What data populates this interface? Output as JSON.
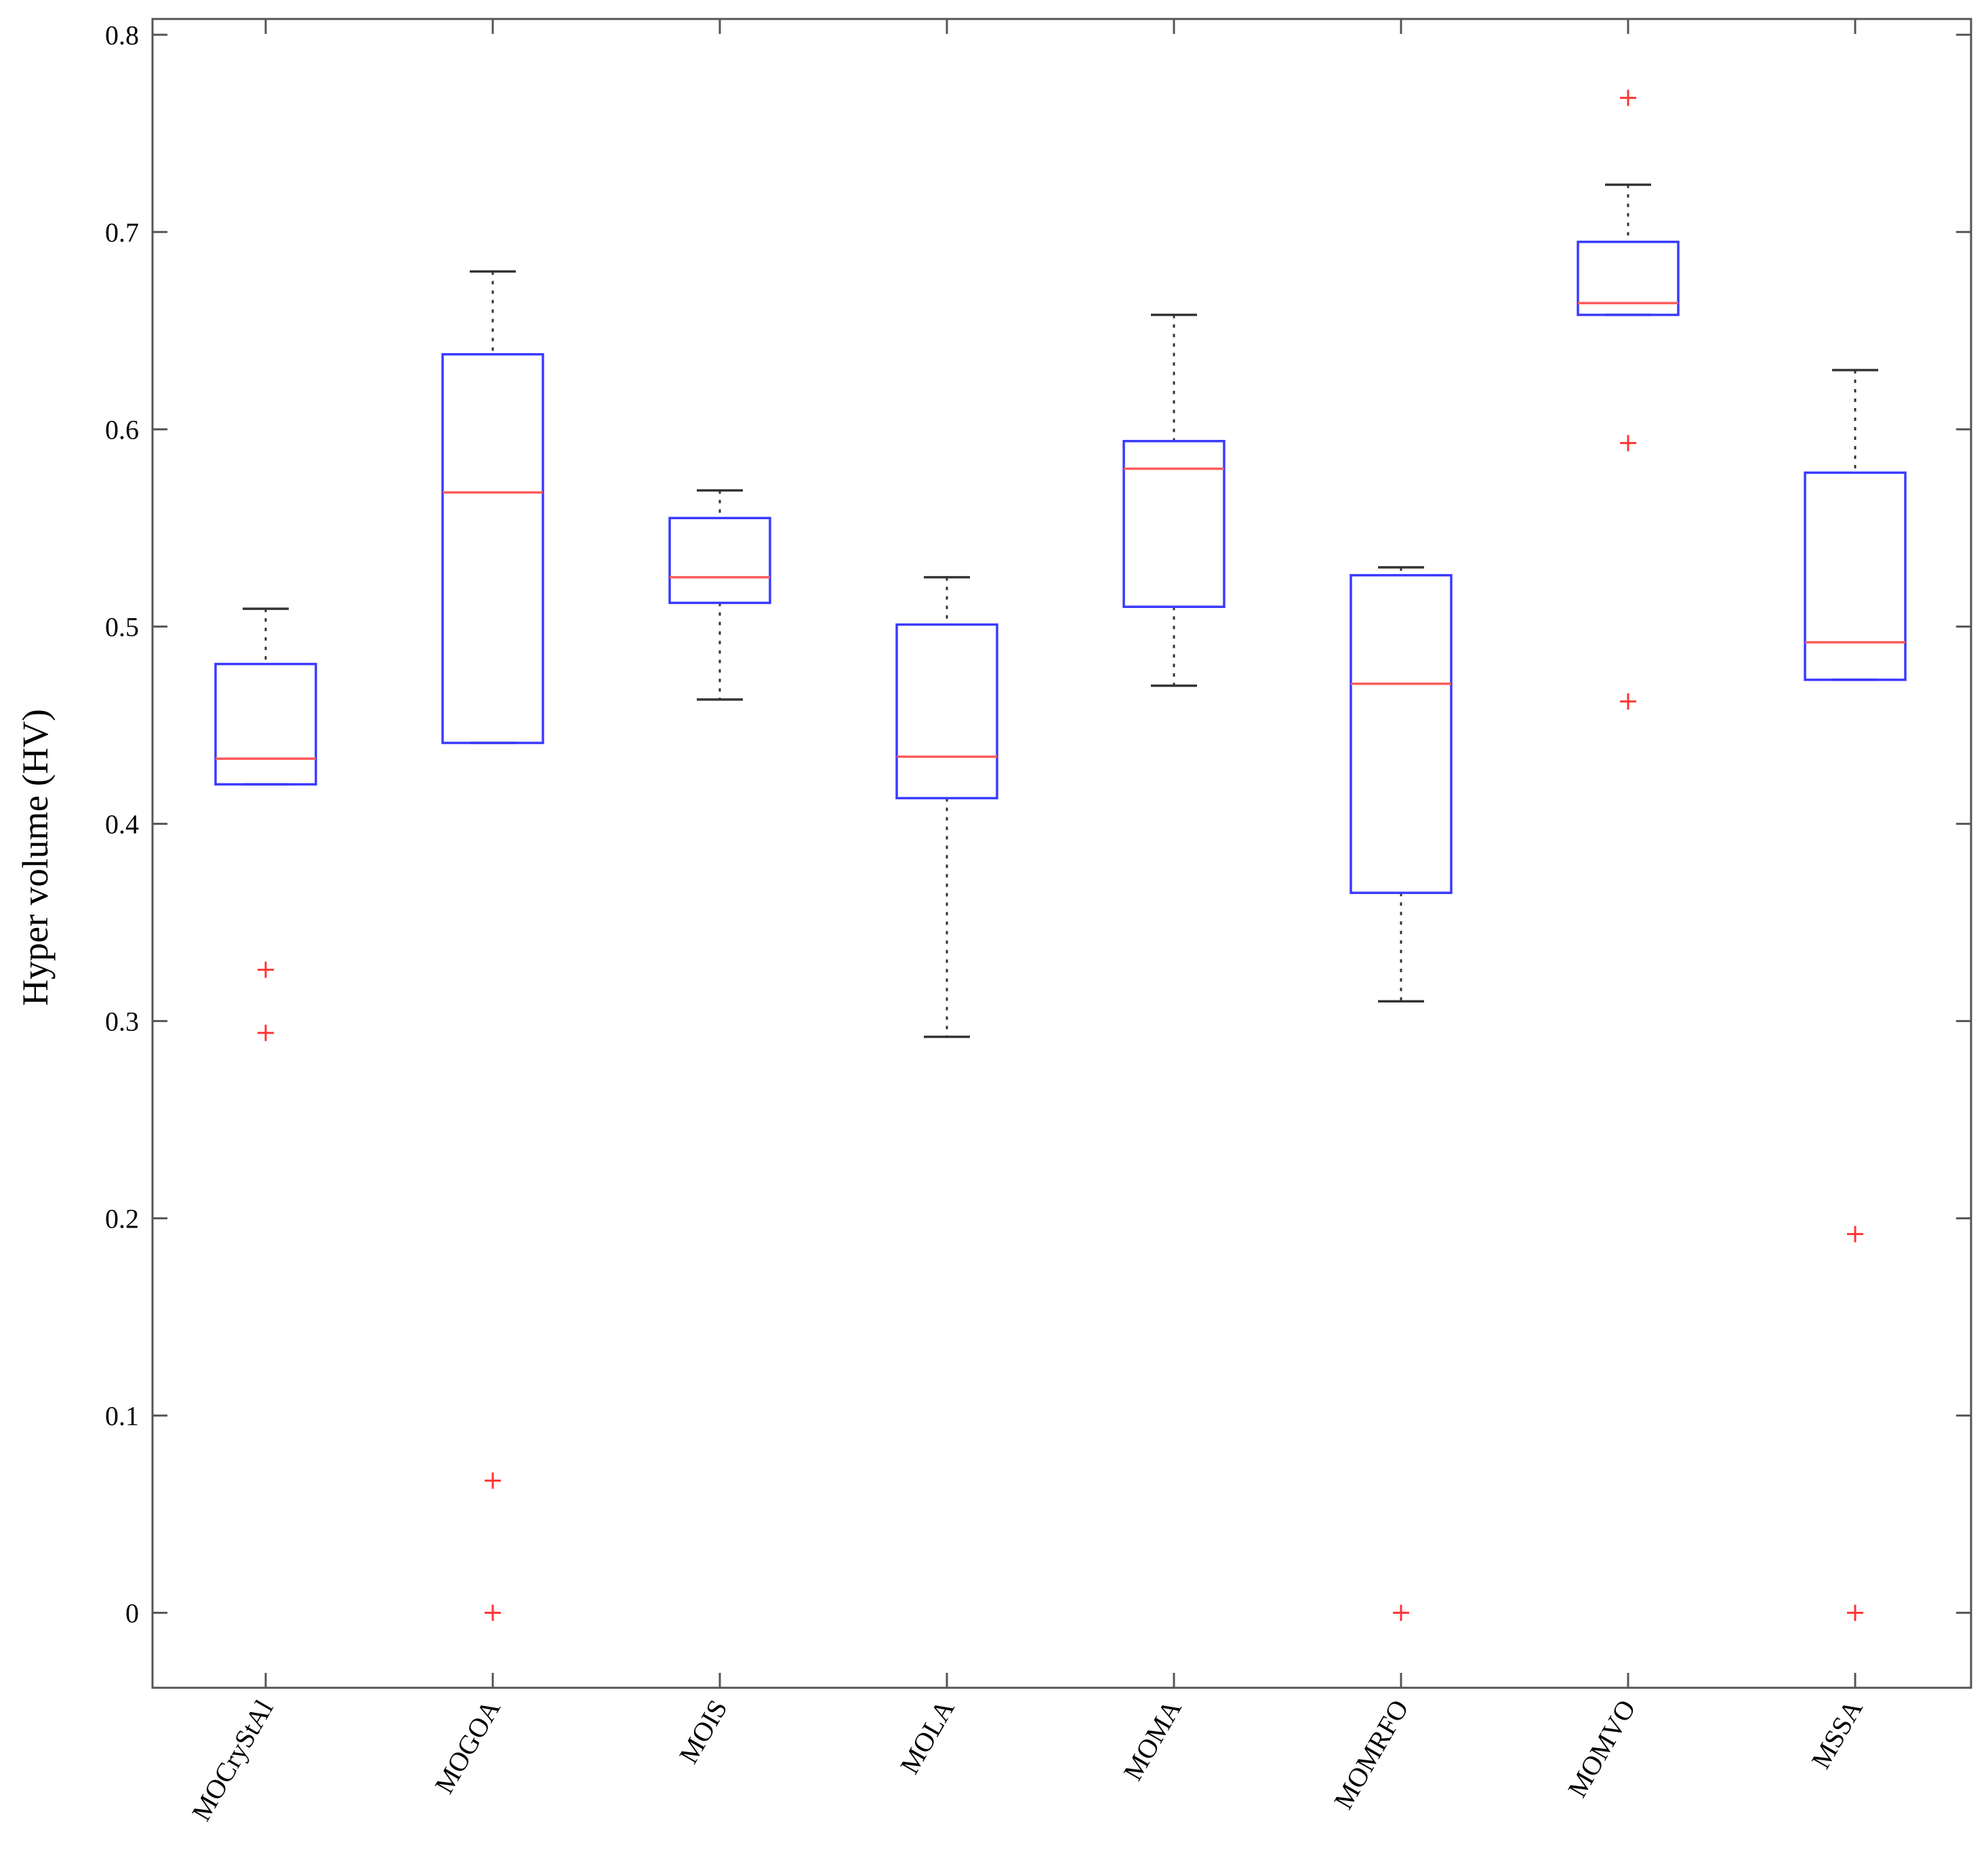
{
  "chart_data": {
    "type": "box",
    "title": "",
    "xlabel": "",
    "ylabel": "Hyper volume (HV)",
    "ylim": [
      -0.038,
      0.808
    ],
    "yticks": [
      0,
      0.1,
      0.2,
      0.3,
      0.4,
      0.5,
      0.6,
      0.7,
      0.8
    ],
    "ytick_labels": [
      "0",
      "0.1",
      "0.2",
      "0.3",
      "0.4",
      "0.5",
      "0.6",
      "0.7",
      "0.8"
    ],
    "grid": false,
    "colors": {
      "box": "#3a3aff",
      "median": "#ff5a5a",
      "whisker": "#333333",
      "outlier": "#ff3333",
      "axis": "#555555"
    },
    "categories": [
      "MOCryStAl",
      "MOGOA",
      "MOIS",
      "MOLA",
      "MOMA",
      "MOMRFO",
      "MOMVO",
      "MSSA"
    ],
    "boxes": [
      {
        "name": "MOCryStAl",
        "whisker_low": 0.42,
        "q1": 0.42,
        "median": 0.433,
        "q3": 0.481,
        "whisker_high": 0.509,
        "outliers": [
          0.326,
          0.294
        ]
      },
      {
        "name": "MOGOA",
        "whisker_low": 0.441,
        "q1": 0.441,
        "median": 0.568,
        "q3": 0.638,
        "whisker_high": 0.68,
        "outliers": [
          0.067,
          0.0
        ]
      },
      {
        "name": "MOIS",
        "whisker_low": 0.463,
        "q1": 0.512,
        "median": 0.525,
        "q3": 0.555,
        "whisker_high": 0.569,
        "outliers": []
      },
      {
        "name": "MOLA",
        "whisker_low": 0.292,
        "q1": 0.413,
        "median": 0.434,
        "q3": 0.501,
        "whisker_high": 0.525,
        "outliers": []
      },
      {
        "name": "MOMA",
        "whisker_low": 0.47,
        "q1": 0.51,
        "median": 0.58,
        "q3": 0.594,
        "whisker_high": 0.658,
        "outliers": []
      },
      {
        "name": "MOMRFO",
        "whisker_low": 0.31,
        "q1": 0.365,
        "median": 0.471,
        "q3": 0.526,
        "whisker_high": 0.53,
        "outliers": [
          0.0
        ]
      },
      {
        "name": "MOMVO",
        "whisker_low": 0.658,
        "q1": 0.658,
        "median": 0.664,
        "q3": 0.695,
        "whisker_high": 0.724,
        "outliers": [
          0.768,
          0.593,
          0.462
        ]
      },
      {
        "name": "MSSA",
        "whisker_low": 0.473,
        "q1": 0.473,
        "median": 0.492,
        "q3": 0.578,
        "whisker_high": 0.63,
        "outliers": [
          0.192,
          0.0
        ]
      }
    ]
  }
}
